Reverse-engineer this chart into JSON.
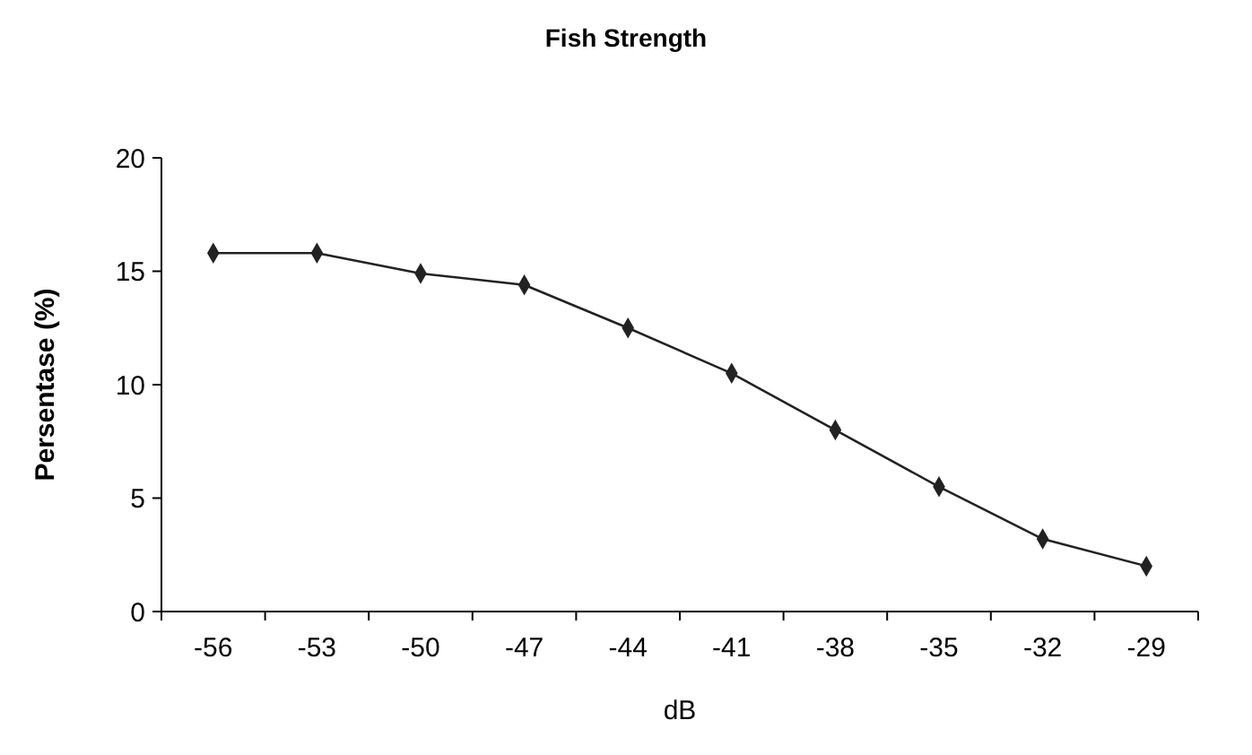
{
  "chart_data": {
    "type": "line",
    "title": "Fish Strength",
    "xlabel": "dB",
    "ylabel": "Persentase (%)",
    "categories": [
      "-56",
      "-53",
      "-50",
      "-47",
      "-44",
      "-41",
      "-38",
      "-35",
      "-32",
      "-29"
    ],
    "series": [
      {
        "color": "#222222",
        "values": [
          15.8,
          15.8,
          14.9,
          14.4,
          12.5,
          10.5,
          8.0,
          5.5,
          3.2,
          2.0
        ]
      }
    ],
    "ylim": [
      0,
      20
    ],
    "yticks": [
      0,
      5,
      10,
      15,
      20
    ],
    "grid": false,
    "marker": "diamond",
    "line_style": "solid"
  }
}
